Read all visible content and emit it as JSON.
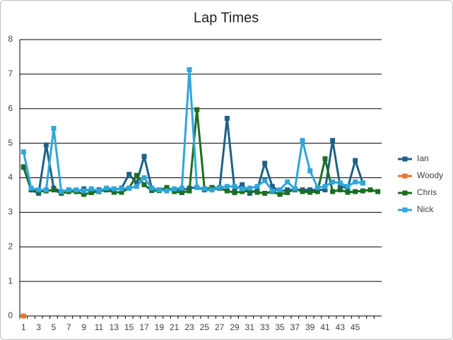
{
  "chart_data": {
    "type": "line",
    "title": "Lap Times",
    "categories": [
      1,
      null,
      3,
      null,
      5,
      null,
      7,
      null,
      9,
      null,
      11,
      null,
      13,
      null,
      15,
      null,
      17,
      null,
      19,
      null,
      21,
      null,
      23,
      null,
      25,
      null,
      27,
      null,
      29,
      null,
      31,
      null,
      33,
      null,
      35,
      null,
      37,
      null,
      39,
      null,
      41,
      null,
      43,
      null,
      45,
      null,
      null,
      null
    ],
    "series": [
      {
        "name": "Ian",
        "color": "#1d6188",
        "values": [
          4.3,
          3.65,
          3.55,
          4.95,
          3.7,
          3.6,
          3.65,
          3.6,
          3.68,
          3.6,
          3.65,
          3.65,
          3.65,
          3.7,
          4.1,
          3.85,
          4.62,
          3.7,
          3.65,
          3.7,
          3.65,
          3.65,
          3.7,
          3.72,
          3.65,
          3.65,
          3.7,
          5.72,
          3.65,
          3.8,
          3.55,
          3.65,
          4.42,
          3.75,
          3.6,
          3.65,
          3.65,
          3.65,
          3.65,
          3.65,
          3.65,
          5.08,
          3.75,
          3.7,
          4.5,
          3.85,
          null,
          null
        ]
      },
      {
        "name": "Woody",
        "color": "#e8762d",
        "values": [
          0,
          null,
          null,
          null,
          null,
          null,
          null,
          null,
          null,
          null,
          null,
          null,
          null,
          null,
          null,
          null,
          null,
          null,
          null,
          null,
          null,
          null,
          null,
          null,
          null,
          null,
          null,
          null,
          null,
          null,
          null,
          null,
          null,
          null,
          null,
          null,
          null,
          null,
          null,
          null,
          null,
          null,
          null,
          null,
          null,
          null,
          null,
          null
        ]
      },
      {
        "name": "Chris",
        "color": "#1b6e22",
        "values": [
          4.32,
          3.65,
          3.6,
          3.62,
          3.65,
          3.55,
          3.6,
          3.6,
          3.52,
          3.57,
          3.6,
          3.65,
          3.58,
          3.58,
          3.7,
          4.07,
          3.8,
          3.63,
          3.63,
          3.72,
          3.6,
          3.57,
          3.62,
          5.97,
          3.68,
          3.72,
          3.7,
          3.62,
          3.57,
          3.6,
          3.62,
          3.58,
          3.55,
          3.6,
          3.52,
          3.57,
          3.68,
          3.6,
          3.58,
          3.6,
          4.55,
          3.6,
          3.65,
          3.58,
          3.6,
          3.62,
          3.65,
          3.6
        ]
      },
      {
        "name": "Nick",
        "color": "#2ea6dc",
        "values": [
          4.75,
          3.7,
          3.65,
          3.65,
          5.43,
          3.6,
          3.65,
          3.65,
          3.62,
          3.68,
          3.62,
          3.7,
          3.68,
          3.68,
          3.7,
          3.75,
          4.0,
          3.7,
          3.65,
          3.62,
          3.68,
          3.7,
          7.13,
          3.72,
          3.68,
          3.65,
          3.72,
          3.75,
          3.75,
          3.68,
          3.7,
          3.75,
          3.92,
          3.62,
          3.65,
          3.88,
          3.68,
          5.08,
          4.2,
          3.72,
          3.75,
          3.88,
          3.85,
          3.75,
          3.88,
          3.85,
          null,
          null
        ]
      }
    ],
    "ylim": [
      0,
      8
    ],
    "yticks": [
      0,
      1,
      2,
      3,
      4,
      5,
      6,
      7,
      8
    ],
    "grid": true,
    "legend": "right"
  }
}
